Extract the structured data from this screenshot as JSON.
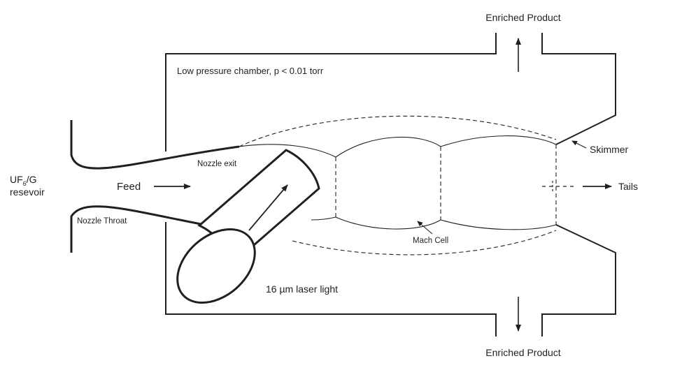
{
  "labels": {
    "enriched_product_top": "Enriched Product",
    "enriched_product_bottom": "Enriched Product",
    "chamber": "Low pressure chamber,  p < 0.01 torr",
    "skimmer": "Skimmer",
    "tails": "Tails",
    "reservoir_prefix": "UF",
    "reservoir_subscript": "6",
    "reservoir_suffix": "/G",
    "reservoir_line2": "resevoir",
    "feed": "Feed",
    "nozzle_exit": "Nozzle exit",
    "nozzle_throat": "Nozzle Throat",
    "mach_cell": "Mach Cell",
    "laser_light": "16 µm laser light"
  },
  "colors": {
    "stroke": "#231f20",
    "background": "#ffffff"
  }
}
